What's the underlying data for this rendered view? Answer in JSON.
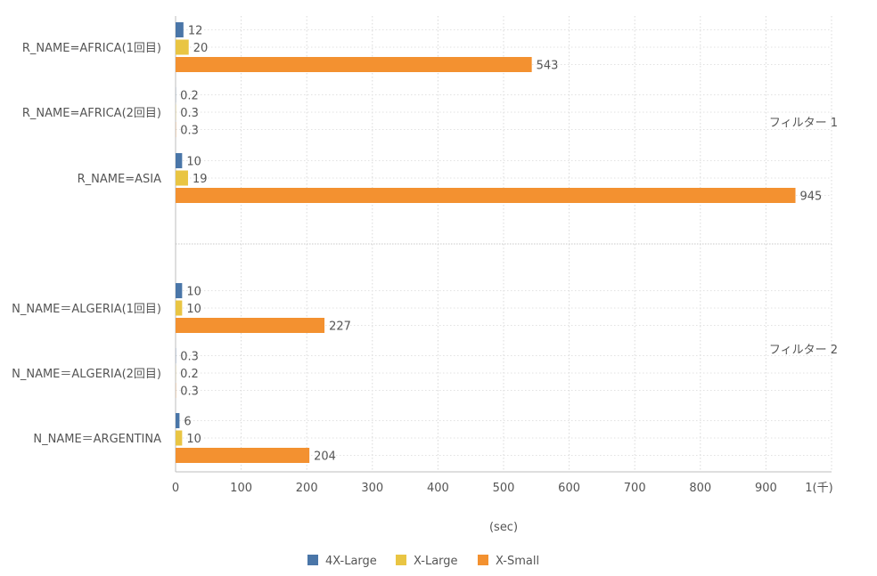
{
  "chart_data": {
    "type": "bar",
    "orientation": "horizontal",
    "xlabel": "(sec)",
    "xlim": [
      0,
      1000
    ],
    "x_ticks": [
      "0",
      "100",
      "200",
      "300",
      "400",
      "500",
      "600",
      "700",
      "800",
      "900",
      "1(千)"
    ],
    "grid": true,
    "legend_position": "bottom",
    "series": [
      {
        "name": "4X-Large",
        "color": "#4a76a8"
      },
      {
        "name": "X-Large",
        "color": "#e9c543"
      },
      {
        "name": "X-Small",
        "color": "#f39130"
      }
    ],
    "facets": [
      {
        "label": "フィルター 1",
        "categories": [
          {
            "label": "R_NAME=AFRICA(1回目)",
            "values": [
              12,
              20,
              543
            ],
            "value_labels": [
              "12",
              "20",
              "543"
            ]
          },
          {
            "label": "R_NAME=AFRICA(2回目)",
            "values": [
              0.2,
              0.3,
              0.3
            ],
            "value_labels": [
              "0.2",
              "0.3",
              "0.3"
            ]
          },
          {
            "label": "R_NAME=ASIA",
            "values": [
              10,
              19,
              945
            ],
            "value_labels": [
              "10",
              "19",
              "945"
            ]
          }
        ]
      },
      {
        "label": "フィルター 2",
        "categories": [
          {
            "label": "N_NAME＝ALGERIA(1回目)",
            "values": [
              10,
              10,
              227
            ],
            "value_labels": [
              "10",
              "10",
              "227"
            ]
          },
          {
            "label": "N_NAME＝ALGERIA(2回目)",
            "values": [
              0.3,
              0.2,
              0.3
            ],
            "value_labels": [
              "0.3",
              "0.2",
              "0.3"
            ]
          },
          {
            "label": "N_NAME＝ARGENTINA",
            "values": [
              6,
              10,
              204
            ],
            "value_labels": [
              "6",
              "10",
              "204"
            ]
          }
        ]
      }
    ]
  }
}
